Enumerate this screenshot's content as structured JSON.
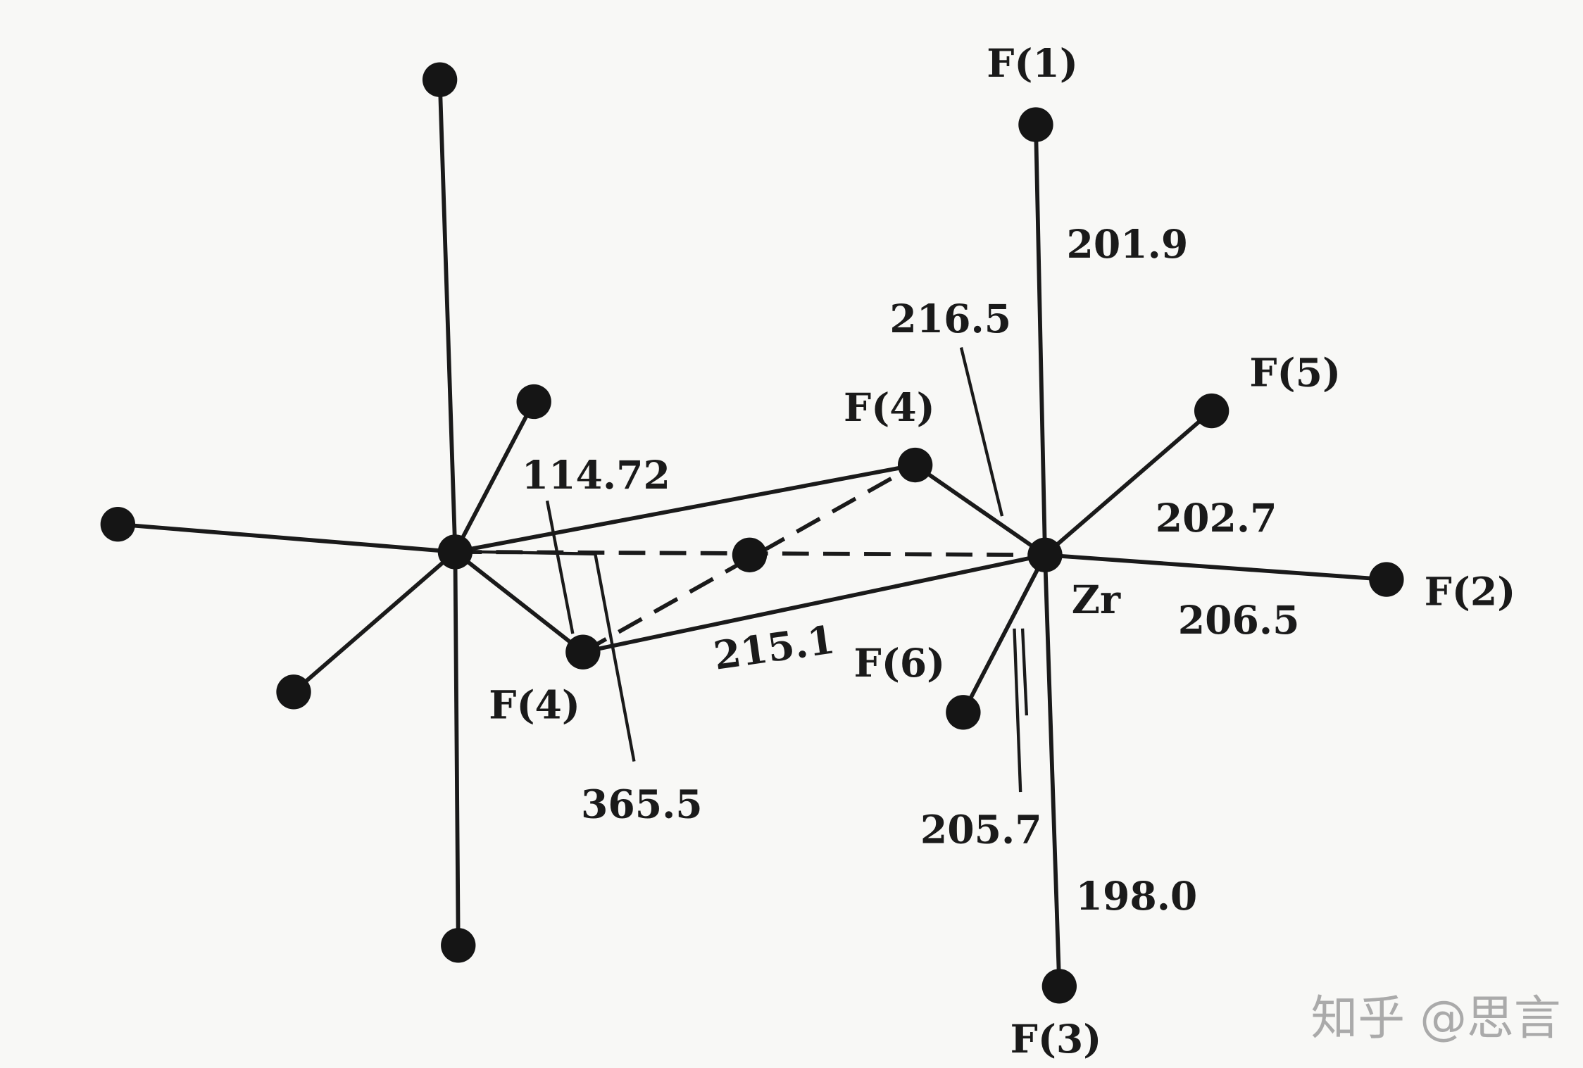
{
  "atom_labels": {
    "f1": "F(1)",
    "f2": "F(2)",
    "f3": "F(3)",
    "f4_upper": "F(4)",
    "f4_lower": "F(4)",
    "f5": "F(5)",
    "f6": "F(6)",
    "zr": "Zr"
  },
  "distances": {
    "zr_f1": "201.9",
    "zr_f4": "216.5",
    "zr_f5": "202.7",
    "zr_f2": "206.5",
    "f4_zr_bridge": "215.1",
    "zr_f6": "205.7",
    "zr_f3": "198.0",
    "angle": "114.72",
    "zr_zr": "365.5"
  },
  "watermark": "知乎 @思言",
  "colors": {
    "ink": "#1a1a1a",
    "paper": "#f8f8f6",
    "watermark": "#aaaaaa"
  }
}
